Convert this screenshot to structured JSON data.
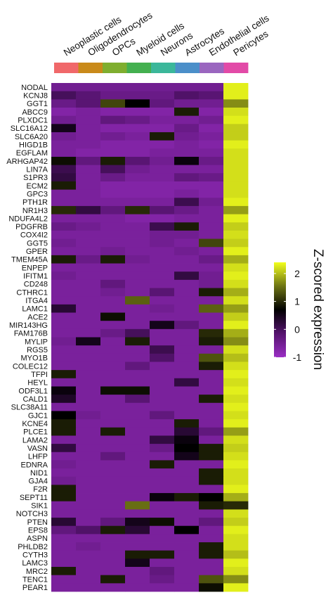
{
  "chart_data": {
    "type": "heatmap",
    "title": "",
    "xlabel": "",
    "ylabel": "",
    "columns": [
      "Neoplastic cells",
      "Oligodendrocytes",
      "OPCs",
      "Myeloid cells",
      "Neurons",
      "Astrocytes",
      "Endothelial cells",
      "Pericytes"
    ],
    "column_colors": [
      "#f0686a",
      "#c98a1a",
      "#7fae2f",
      "#44b050",
      "#3bb79a",
      "#4b8fc9",
      "#9a66bf",
      "#e24aa7"
    ],
    "rows": [
      "NODAL",
      "KCNJ8",
      "GGT1",
      "ABCC9",
      "PLXDC1",
      "SLC16A12",
      "SLC6A20",
      "HIGD1B",
      "EGFLAM",
      "ARHGAP42",
      "LIN7A",
      "S1PR3",
      "ECM2",
      "GPC3",
      "PTH1R",
      "NR1H3",
      "NDUFA4L2",
      "PDGFRB",
      "COX4I2",
      "GGT5",
      "GPER",
      "TMEM45A",
      "ENPEP",
      "IFITM1",
      "CD248",
      "CTHRC1",
      "ITGA4",
      "LAMC1",
      "ACE2",
      "MIR143HG",
      "FAM176B",
      "MYLIP",
      "RGS5",
      "MYO1B",
      "COLEC12",
      "TFPI",
      "HEYL",
      "ODF3L1",
      "CALD1",
      "SLC38A11",
      "GJC1",
      "KCNE4",
      "PLCE1",
      "LAMA2",
      "VASN",
      "LHFP",
      "EDNRA",
      "NID1",
      "GJA4",
      "F2R",
      "SEPT11",
      "SIK1",
      "NOTCH3",
      "PTEN",
      "EPS8",
      "ASPN",
      "PHLDB2",
      "CYTH3",
      "LAMC3",
      "MRC2",
      "TENC1",
      "PEAR1"
    ],
    "values": [
      [
        -0.5,
        -0.5,
        -0.5,
        -0.5,
        -0.5,
        -0.5,
        -0.5,
        2.3
      ],
      [
        0.0,
        -0.2,
        -0.4,
        -0.4,
        -0.4,
        -0.1,
        -0.2,
        2.3
      ],
      [
        -0.4,
        -0.2,
        1.2,
        0.7,
        -0.3,
        -0.5,
        -0.5,
        1.7
      ],
      [
        -0.7,
        -0.6,
        -0.7,
        -0.7,
        -0.7,
        0.9,
        -0.7,
        2.2
      ],
      [
        -0.5,
        -0.6,
        -0.3,
        -0.4,
        -0.6,
        -0.6,
        -0.5,
        2.3
      ],
      [
        0.5,
        -0.6,
        -0.7,
        -0.7,
        -0.7,
        -0.4,
        -0.7,
        2.1
      ],
      [
        -0.5,
        -0.6,
        -0.5,
        -0.6,
        0.9,
        -0.5,
        -0.6,
        2.1
      ],
      [
        -0.6,
        -0.6,
        -0.7,
        -0.7,
        -0.7,
        -0.6,
        -0.7,
        2.3
      ],
      [
        -0.6,
        -0.7,
        -0.7,
        -0.7,
        -0.6,
        -0.6,
        -0.6,
        2.2
      ],
      [
        0.8,
        -0.3,
        0.9,
        -0.2,
        -0.5,
        0.6,
        -0.4,
        2.2
      ],
      [
        0.1,
        -0.6,
        0.0,
        -0.5,
        -0.6,
        -0.6,
        -0.6,
        2.2
      ],
      [
        0.2,
        -0.6,
        -0.4,
        -0.6,
        -0.6,
        -0.3,
        -0.4,
        2.2
      ],
      [
        0.9,
        -0.6,
        -0.7,
        -0.7,
        -0.7,
        -0.7,
        -0.7,
        2.2
      ],
      [
        -0.6,
        -0.6,
        -0.7,
        -0.7,
        -0.7,
        -0.6,
        -0.7,
        2.2
      ],
      [
        -0.6,
        -0.6,
        -0.6,
        -0.6,
        -0.6,
        0.1,
        -0.5,
        2.3
      ],
      [
        1.0,
        0.2,
        -0.3,
        1.0,
        -0.2,
        -0.4,
        -0.6,
        1.8
      ],
      [
        -0.6,
        -0.6,
        -0.6,
        -0.7,
        -0.7,
        -0.6,
        -0.6,
        2.3
      ],
      [
        -0.4,
        -0.5,
        -0.6,
        -0.6,
        0.1,
        0.9,
        -0.6,
        2.1
      ],
      [
        -0.6,
        -0.6,
        -0.6,
        -0.6,
        -0.5,
        -0.5,
        -0.6,
        2.2
      ],
      [
        -0.5,
        -0.6,
        -0.6,
        -0.6,
        -0.5,
        -0.6,
        1.2,
        2.1
      ],
      [
        -0.6,
        -0.6,
        -0.5,
        -0.6,
        -0.6,
        -0.5,
        -0.6,
        2.3
      ],
      [
        0.9,
        -0.4,
        0.9,
        -0.5,
        -0.6,
        -0.6,
        -0.4,
        1.9
      ],
      [
        -0.6,
        -0.6,
        -0.6,
        -0.6,
        -0.6,
        -0.6,
        -0.6,
        2.2
      ],
      [
        -0.5,
        -0.6,
        -0.6,
        -0.6,
        -0.6,
        0.2,
        -0.5,
        2.3
      ],
      [
        -0.6,
        -0.6,
        -0.3,
        -0.6,
        -0.6,
        -0.6,
        -0.5,
        2.2
      ],
      [
        -0.6,
        -0.6,
        -0.5,
        -0.6,
        -0.2,
        -0.6,
        0.9,
        1.9
      ],
      [
        -0.6,
        -0.6,
        -0.6,
        1.4,
        -0.6,
        -0.6,
        -0.6,
        2.2
      ],
      [
        0.3,
        -0.6,
        -0.6,
        -0.6,
        -0.5,
        -0.6,
        1.4,
        1.8
      ],
      [
        -0.6,
        -0.6,
        0.8,
        -0.6,
        -0.6,
        -0.6,
        -0.6,
        2.1
      ],
      [
        -0.6,
        -0.6,
        -0.6,
        -0.6,
        0.5,
        -0.3,
        -0.6,
        2.3
      ],
      [
        -0.6,
        -0.6,
        -0.4,
        0.0,
        -0.6,
        -0.6,
        1.0,
        1.9
      ],
      [
        -0.5,
        0.5,
        -0.6,
        0.9,
        -0.6,
        -0.6,
        0.9,
        1.7
      ],
      [
        -0.6,
        -0.6,
        -0.6,
        -0.6,
        0.1,
        -0.6,
        -0.6,
        2.2
      ],
      [
        -0.6,
        -0.6,
        -0.6,
        -0.6,
        -0.1,
        -0.6,
        1.3,
        2.0
      ],
      [
        -0.6,
        -0.6,
        -0.6,
        -0.3,
        -0.6,
        -0.6,
        0.9,
        2.2
      ],
      [
        0.9,
        -0.6,
        -0.6,
        -0.6,
        -0.6,
        -0.6,
        -0.6,
        2.3
      ],
      [
        -0.6,
        -0.6,
        -0.6,
        -0.6,
        -0.6,
        0.2,
        -0.6,
        2.2
      ],
      [
        0.6,
        -0.6,
        0.8,
        0.8,
        -0.6,
        -0.6,
        -0.6,
        2.3
      ],
      [
        0.4,
        -0.6,
        -0.6,
        -0.2,
        -0.6,
        -0.6,
        0.9,
        2.2
      ],
      [
        -0.6,
        -0.6,
        -0.6,
        -0.6,
        -0.6,
        -0.6,
        -0.6,
        2.3
      ],
      [
        0.7,
        -0.5,
        -0.6,
        -0.6,
        -0.3,
        -0.6,
        -0.6,
        2.2
      ],
      [
        0.9,
        -0.6,
        -0.6,
        -0.6,
        -0.6,
        0.9,
        -0.6,
        2.3
      ],
      [
        0.9,
        -0.6,
        0.9,
        -0.6,
        -0.6,
        0.3,
        -0.3,
        1.8
      ],
      [
        -0.6,
        -0.6,
        -0.6,
        -0.6,
        0.2,
        0.6,
        -0.6,
        2.2
      ],
      [
        0.2,
        -0.6,
        -0.6,
        -0.6,
        -0.4,
        0.7,
        0.9,
        2.1
      ],
      [
        -0.6,
        -0.6,
        -0.3,
        -0.6,
        -0.6,
        0.5,
        0.9,
        2.2
      ],
      [
        -0.5,
        -0.6,
        -0.6,
        -0.6,
        0.9,
        -0.6,
        -0.6,
        2.3
      ],
      [
        -0.6,
        -0.6,
        -0.6,
        -0.6,
        -0.6,
        -0.6,
        0.9,
        2.2
      ],
      [
        -0.5,
        -0.6,
        -0.6,
        -0.6,
        -0.6,
        -0.6,
        0.9,
        2.2
      ],
      [
        0.9,
        -0.6,
        -0.6,
        -0.6,
        -0.6,
        -0.6,
        -0.6,
        2.3
      ],
      [
        0.9,
        -0.6,
        -0.6,
        -0.6,
        0.6,
        0.9,
        0.7,
        1.9
      ],
      [
        -0.6,
        -0.6,
        -0.6,
        1.5,
        -0.6,
        -0.6,
        0.9,
        1.0
      ],
      [
        -0.6,
        -0.6,
        -0.6,
        -0.6,
        -0.6,
        -0.6,
        -0.6,
        2.2
      ],
      [
        0.3,
        -0.6,
        -0.3,
        0.5,
        0.8,
        -0.6,
        -0.3,
        2.1
      ],
      [
        -0.3,
        -0.1,
        0.9,
        0.3,
        -0.6,
        0.7,
        -0.6,
        2.3
      ],
      [
        -0.6,
        -0.6,
        -0.6,
        -0.6,
        -0.6,
        -0.6,
        -0.6,
        2.2
      ],
      [
        -0.6,
        -0.5,
        -0.6,
        -0.6,
        -0.6,
        -0.6,
        0.9,
        2.2
      ],
      [
        -0.6,
        -0.6,
        -0.6,
        0.9,
        0.9,
        -0.6,
        0.9,
        2.0
      ],
      [
        -0.6,
        -0.6,
        -0.6,
        0.5,
        -0.6,
        -0.6,
        -0.6,
        2.3
      ],
      [
        0.9,
        -0.6,
        -0.6,
        -0.6,
        -0.3,
        -0.6,
        -0.6,
        2.2
      ],
      [
        -0.6,
        -0.6,
        0.9,
        -0.6,
        -0.4,
        -0.6,
        1.3,
        1.7
      ],
      [
        -0.6,
        -0.6,
        -0.6,
        -0.6,
        -0.6,
        -0.6,
        0.8,
        2.3
      ]
    ],
    "colorbar": {
      "label": "Z-scored expression",
      "min": -1,
      "max": 2.4,
      "ticks": [
        -1,
        0,
        1,
        2
      ],
      "colors": [
        "#9a2ec4",
        "#55136e",
        "#000000",
        "#6e7514",
        "#f2ff1c"
      ]
    }
  }
}
